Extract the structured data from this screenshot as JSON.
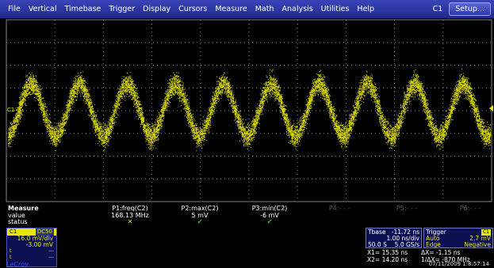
{
  "menubar": {
    "items": [
      "File",
      "Vertical",
      "Timebase",
      "Trigger",
      "Display",
      "Cursors",
      "Measure",
      "Math",
      "Analysis",
      "Utilities",
      "Help"
    ],
    "channel_indicator": "C1",
    "setup_label": "Setup..."
  },
  "grid": {
    "channel_label": "C1",
    "trace_color": "#e8e800",
    "grid_color": "#808080"
  },
  "measure": {
    "title": "Measure",
    "row_value": "value",
    "row_status": "status",
    "params": [
      {
        "name": "P1:freq(C2)",
        "value": "168.13 MHz",
        "status": "warning"
      },
      {
        "name": "P2:max(C2)",
        "value": "5 mV",
        "status": "ok"
      },
      {
        "name": "P3:min(C2)",
        "value": "-6 mV",
        "status": "ok"
      },
      {
        "name": "P4:- - -",
        "value": "",
        "status": ""
      },
      {
        "name": "P5:- - -",
        "value": "",
        "status": ""
      },
      {
        "name": "P6:- - -",
        "value": "",
        "status": ""
      }
    ]
  },
  "channel_box": {
    "label": "C1",
    "coupling": "DC50",
    "vdiv": "16.0 mV/div",
    "offset": "-3.00 mV",
    "row3_left": "t",
    "row3_right": "---",
    "row4_left": "t",
    "row4_right": "---"
  },
  "timebase": {
    "label": "Tbase",
    "delay": "-11.72 ns",
    "tdiv": "1.00 ns/div",
    "samples": "50.0 S",
    "rate": "5.0 GS/s"
  },
  "trigger": {
    "label": "Trigger",
    "source": "C1",
    "mode": "Auto",
    "level": "2.7 mV",
    "type": "Edge",
    "slope": "Negative"
  },
  "cursors": {
    "x1": "X1= 15.35 ns",
    "dx": "ΔX= -1.15 ns",
    "x2": "X2= 14.20 ns",
    "inv_dx": "1/ΔX= -870 MHz"
  },
  "datetime": "07/11/2009 1:8:57:14",
  "brand": "LeCroy"
}
